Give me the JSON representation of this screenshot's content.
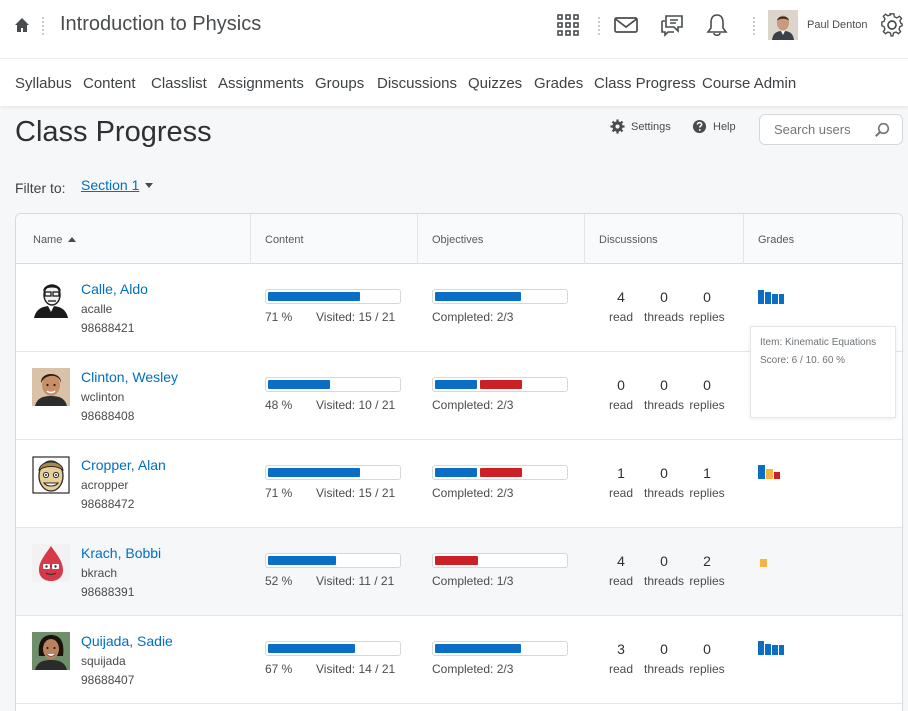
{
  "topbar": {
    "course_title": "Introduction to Physics",
    "user_name": "Paul Denton",
    "icons": [
      "home-icon",
      "apps-grid-icon",
      "mail-icon",
      "chat-icon",
      "bell-icon",
      "gear-icon"
    ]
  },
  "nav": {
    "items": [
      "Syllabus",
      "Content",
      "Classlist",
      "Assignments",
      "Groups",
      "Discussions",
      "Quizzes",
      "Grades",
      "Class Progress",
      "Course Admin"
    ]
  },
  "page": {
    "title": "Class Progress",
    "settings_label": "Settings",
    "help_label": "Help",
    "search_placeholder": "Search users",
    "filter_label": "Filter to:",
    "filter_value": "Section 1"
  },
  "table": {
    "headers": [
      "Name",
      "Content",
      "Objectives",
      "Discussions",
      "Grades"
    ],
    "discussion_labels": [
      "read",
      "threads",
      "replies"
    ],
    "students": [
      {
        "name": "Calle, Aldo",
        "username": "acalle",
        "id": "98688421",
        "content_pct": "71 %",
        "content_fraction": 0.71,
        "visited": "Visited: 15 / 21",
        "objectives": "Completed: 2/3",
        "objective_segments": [
          "blue"
        ],
        "read": "4",
        "threads": "0",
        "replies": "0"
      },
      {
        "name": "Clinton, Wesley",
        "username": "wclinton",
        "id": "98688408",
        "content_pct": "48 %",
        "content_fraction": 0.48,
        "visited": "Visited: 10 / 21",
        "objectives": "Completed: 2/3",
        "objective_segments": [
          "blue",
          "red"
        ],
        "read": "0",
        "threads": "0",
        "replies": "0"
      },
      {
        "name": "Cropper, Alan",
        "username": "acropper",
        "id": "98688472",
        "content_pct": "71 %",
        "content_fraction": 0.71,
        "visited": "Visited: 15 / 21",
        "objectives": "Completed: 2/3",
        "objective_segments": [
          "blue",
          "red"
        ],
        "read": "1",
        "threads": "0",
        "replies": "1"
      },
      {
        "name": "Krach, Bobbi",
        "username": "bkrach",
        "id": "98688391",
        "content_pct": "52 %",
        "content_fraction": 0.52,
        "visited": "Visited: 11 / 21",
        "objectives": "Completed: 1/3",
        "objective_segments": [
          "red"
        ],
        "read": "4",
        "threads": "0",
        "replies": "2"
      },
      {
        "name": "Quijada, Sadie",
        "username": "squijada",
        "id": "98688407",
        "content_pct": "67 %",
        "content_fraction": 0.67,
        "visited": "Visited: 14 / 21",
        "objectives": "Completed: 2/3",
        "objective_segments": [
          "blue"
        ],
        "read": "3",
        "threads": "0",
        "replies": "0"
      }
    ]
  },
  "tooltip": {
    "item": "Item: Kinematic Equations",
    "score": "Score: 6 / 10. 60 %"
  },
  "colors": {
    "link": "#006fbf",
    "progress_blue": "#0a6ec4",
    "objective_red": "#cd2026",
    "grade_orange": "#f5b445"
  }
}
